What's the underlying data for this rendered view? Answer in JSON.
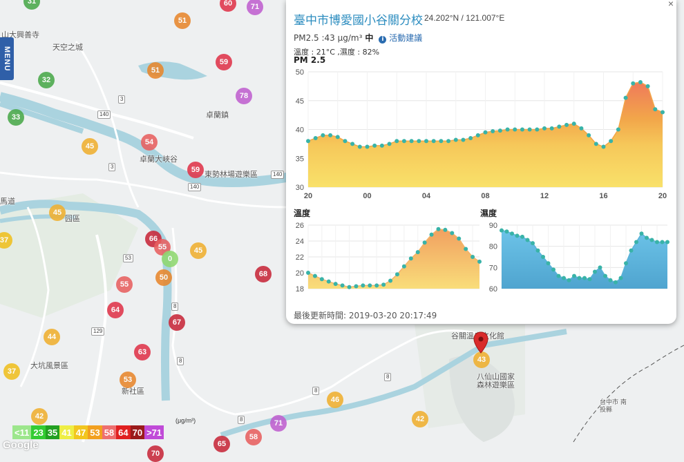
{
  "menu": {
    "label": "MENU"
  },
  "station": {
    "name": "臺中市博愛國小谷關分校",
    "coords": "24.202°N / 121.007°E",
    "pm_reading": "PM2.5 :43 μg/m³",
    "pm_level": "中",
    "advice_link": "活動建議",
    "weather": "溫度 : 21°C ,濕度 : 82%",
    "updated": "最後更新時間: 2019-03-20 20:17:49",
    "close": "×"
  },
  "map_labels": [
    {
      "text": "山大興善寺"
    },
    {
      "text": "天空之城"
    },
    {
      "text": "卓蘭鎮"
    },
    {
      "text": "卓蘭大峽谷"
    },
    {
      "text": "東勢林場遊樂區"
    },
    {
      "text": "馬道"
    },
    {
      "text": "园區"
    },
    {
      "text": "大坑風景區"
    },
    {
      "text": "新社區"
    },
    {
      "text": "谷關溫泉文化館"
    },
    {
      "text": "八仙山國家森林遊樂區"
    },
    {
      "text": "台中市 南投縣"
    }
  ],
  "road_shields": [
    "140",
    "140",
    "140",
    "3",
    "3",
    "53",
    "129",
    "8",
    "8",
    "8",
    "8",
    "8"
  ],
  "markers": [
    {
      "value": "31",
      "color": "#4aa94a"
    },
    {
      "value": "60",
      "color": "#e0354a"
    },
    {
      "value": "71",
      "color": "#c060d0"
    },
    {
      "value": "51",
      "color": "#e8872d"
    },
    {
      "value": "51",
      "color": "#e8872d"
    },
    {
      "value": "59",
      "color": "#e0354a"
    },
    {
      "value": "78",
      "color": "#c060d0"
    },
    {
      "value": "32",
      "color": "#4aa94a"
    },
    {
      "value": "33",
      "color": "#4aa94a"
    },
    {
      "value": "45",
      "color": "#f0b030"
    },
    {
      "value": "54",
      "color": "#e86060"
    },
    {
      "value": "59",
      "color": "#e0354a"
    },
    {
      "value": "45",
      "color": "#f0b030"
    },
    {
      "value": "37",
      "color": "#f0c020"
    },
    {
      "value": "66",
      "color": "#c8283a"
    },
    {
      "value": "55",
      "color": "#e86060"
    },
    {
      "value": "0",
      "color": "#8fd870"
    },
    {
      "value": "45",
      "color": "#f0b030"
    },
    {
      "value": "50",
      "color": "#e8872d"
    },
    {
      "value": "68",
      "color": "#c8283a"
    },
    {
      "value": "55",
      "color": "#e86060"
    },
    {
      "value": "64",
      "color": "#e0354a"
    },
    {
      "value": "67",
      "color": "#c8283a"
    },
    {
      "value": "44",
      "color": "#f0b030"
    },
    {
      "value": "63",
      "color": "#e0354a"
    },
    {
      "value": "37",
      "color": "#f0c020"
    },
    {
      "value": "53",
      "color": "#e8872d"
    },
    {
      "value": "46",
      "color": "#f0b030"
    },
    {
      "value": "42",
      "color": "#f0b030"
    },
    {
      "value": "71",
      "color": "#c060d0"
    },
    {
      "value": "58",
      "color": "#e86060"
    },
    {
      "value": "65",
      "color": "#c8283a"
    },
    {
      "value": "42",
      "color": "#f0b030"
    },
    {
      "value": "43",
      "color": "#f0b030"
    },
    {
      "value": "70",
      "color": "#c8283a"
    }
  ],
  "legend": {
    "unit": "(μg/m³)",
    "cells": [
      {
        "label": "<11",
        "color": "#9ce68c"
      },
      {
        "label": "23",
        "color": "#33cc33"
      },
      {
        "label": "35",
        "color": "#22a022"
      },
      {
        "label": "41",
        "color": "#eeee44"
      },
      {
        "label": "47",
        "color": "#f2c61f"
      },
      {
        "label": "53",
        "color": "#f2a01f"
      },
      {
        "label": "58",
        "color": "#ee6f6f"
      },
      {
        "label": "64",
        "color": "#e02020"
      },
      {
        "label": "70",
        "color": "#9a1b1b"
      },
      {
        "label": ">71",
        "color": "#c04bd8"
      }
    ]
  },
  "google": "Google",
  "chart_data": [
    {
      "type": "area",
      "title": "PM 2.5",
      "ylim": [
        30,
        50
      ],
      "yticks": [
        30,
        35,
        40,
        45,
        50
      ],
      "xticks": [
        "20",
        "00",
        "04",
        "08",
        "12",
        "16",
        "20"
      ],
      "x": [
        0,
        1,
        2,
        3,
        4,
        5,
        6,
        7,
        8,
        9,
        10,
        11,
        12,
        13,
        14,
        15,
        16,
        17,
        18,
        19,
        20,
        21,
        22,
        23,
        24,
        25,
        26,
        27,
        28,
        29,
        30,
        31,
        32,
        33,
        34,
        35,
        36,
        37,
        38,
        39,
        40,
        41,
        42,
        43,
        44,
        45,
        46,
        47,
        48
      ],
      "values": [
        38,
        38.5,
        39,
        39,
        38.7,
        38,
        37.5,
        37,
        37,
        37.2,
        37.2,
        37.5,
        38,
        38,
        38,
        38,
        38,
        38,
        38,
        38,
        38.2,
        38.2,
        38.5,
        39,
        39.5,
        39.7,
        39.8,
        40,
        40,
        40,
        40,
        40,
        40.2,
        40.2,
        40.5,
        40.8,
        41,
        40.2,
        39,
        37.5,
        37,
        38,
        40,
        45.5,
        48,
        48.2,
        47.5,
        43.5,
        43
      ]
    },
    {
      "type": "area",
      "title": "溫度",
      "ylim": [
        18,
        26
      ],
      "yticks": [
        18,
        20,
        22,
        24,
        26
      ],
      "x": [
        0,
        1,
        2,
        3,
        4,
        5,
        6,
        7,
        8,
        9,
        10,
        11,
        12,
        13,
        14,
        15,
        16,
        17,
        18,
        19,
        20,
        21,
        22,
        23,
        24,
        25
      ],
      "values": [
        20,
        19.6,
        19.2,
        18.9,
        18.6,
        18.4,
        18.2,
        18.3,
        18.4,
        18.4,
        18.4,
        18.5,
        19,
        19.8,
        20.8,
        21.8,
        22.6,
        23.8,
        24.8,
        25.5,
        25.4,
        25,
        24.3,
        23,
        22,
        21.4
      ]
    },
    {
      "type": "area",
      "title": "濕度",
      "ylim": [
        60,
        90
      ],
      "yticks": [
        60,
        70,
        80,
        90
      ],
      "x": [
        0,
        1,
        2,
        3,
        4,
        5,
        6,
        7,
        8,
        9,
        10,
        11,
        12,
        13,
        14,
        15,
        16,
        17,
        18,
        19,
        20,
        21,
        22,
        23,
        24,
        25,
        26,
        27,
        28,
        29,
        30,
        31,
        32
      ],
      "values": [
        87.5,
        87,
        86,
        85,
        84.5,
        83,
        81.5,
        78,
        75,
        72,
        69,
        66,
        65,
        64,
        66,
        65,
        65,
        64.5,
        68,
        70,
        66,
        64,
        63,
        65,
        72,
        78,
        82,
        86,
        84,
        83,
        82,
        82,
        82
      ]
    }
  ]
}
